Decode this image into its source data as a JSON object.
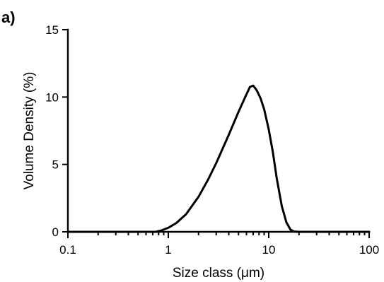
{
  "chart_data": {
    "type": "line",
    "panel_label": "a)",
    "title": "",
    "xlabel": "Size class (μm)",
    "ylabel": "Volume Density (%)",
    "xscale": "log",
    "xlim": [
      0.1,
      100
    ],
    "ylim": [
      0,
      15
    ],
    "xticks": [
      0.1,
      1,
      10,
      100
    ],
    "xtick_labels": [
      "0.1",
      "1",
      "10",
      "100"
    ],
    "yticks": [
      0,
      5,
      10,
      15
    ],
    "ytick_labels": [
      "0",
      "5",
      "10",
      "15"
    ],
    "grid": false,
    "legend": "none",
    "series": [
      {
        "line_color": "#000000",
        "x": [
          0.1,
          0.75,
          0.85,
          1.0,
          1.2,
          1.5,
          2.0,
          2.5,
          3.0,
          4.0,
          5.0,
          6.0,
          6.5,
          7.0,
          7.6,
          8.3,
          9.0,
          10.0,
          11.0,
          12.0,
          13.5,
          15.0,
          16.5,
          18.0,
          20.0,
          100
        ],
        "y": [
          0,
          0,
          0.1,
          0.3,
          0.65,
          1.3,
          2.6,
          3.9,
          5.1,
          7.2,
          8.9,
          10.2,
          10.75,
          10.85,
          10.5,
          9.9,
          9.1,
          7.6,
          5.9,
          4.0,
          1.9,
          0.7,
          0.15,
          0.02,
          0,
          0
        ]
      }
    ]
  }
}
